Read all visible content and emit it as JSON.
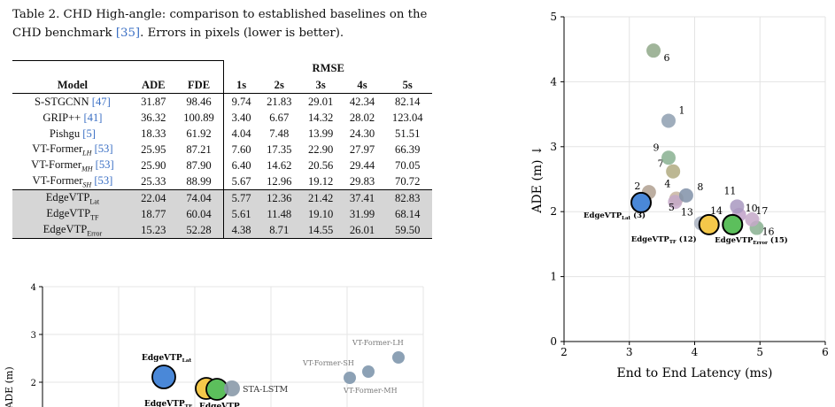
{
  "caption": {
    "label": "Table 2.",
    "text": "CHD High-angle: comparison to established baselines on the CHD benchmark",
    "ref": "[35]",
    "text2": ". Errors in pixels (lower is better)."
  },
  "table": {
    "rmse_header": "RMSE",
    "columns": [
      "Model",
      "ADE",
      "FDE",
      "1s",
      "2s",
      "3s",
      "4s",
      "5s"
    ],
    "rows": [
      {
        "name": "S-STGCNN",
        "sub": "",
        "ref": "[47]",
        "vals": [
          "31.87",
          "98.46",
          "9.74",
          "21.83",
          "29.01",
          "42.34",
          "82.14"
        ]
      },
      {
        "name": "GRIP++",
        "sub": "",
        "ref": "[41]",
        "vals": [
          "36.32",
          "100.89",
          "3.40",
          "6.67",
          "14.32",
          "28.02",
          "123.04"
        ]
      },
      {
        "name": "Pishgu",
        "sub": "",
        "ref": "[5]",
        "vals": [
          "18.33",
          "61.92",
          "4.04",
          "7.48",
          "13.99",
          "24.30",
          "51.51"
        ]
      },
      {
        "name": "VT-Former",
        "sub": "LH",
        "ref": "[53]",
        "vals": [
          "25.95",
          "87.21",
          "7.60",
          "17.35",
          "22.90",
          "27.97",
          "66.39"
        ]
      },
      {
        "name": "VT-Former",
        "sub": "MH",
        "ref": "[53]",
        "vals": [
          "25.90",
          "87.90",
          "6.40",
          "14.62",
          "20.56",
          "29.44",
          "70.05"
        ]
      },
      {
        "name": "VT-Former",
        "sub": "SH",
        "ref": "[53]",
        "vals": [
          "25.33",
          "88.99",
          "5.67",
          "12.96",
          "19.12",
          "29.83",
          "70.72"
        ]
      }
    ],
    "ours": [
      {
        "name": "EdgeVTP",
        "sub": "Lat",
        "vals": [
          "22.04",
          "74.04",
          "5.77",
          "12.36",
          "21.42",
          "37.41",
          "82.83"
        ]
      },
      {
        "name": "EdgeVTP",
        "sub": "TF",
        "vals": [
          "18.77",
          "60.04",
          "5.61",
          "11.48",
          "19.10",
          "31.99",
          "68.14"
        ]
      },
      {
        "name": "EdgeVTP",
        "sub": "Error",
        "vals": [
          "15.23",
          "52.28",
          "4.38",
          "8.71",
          "14.55",
          "26.01",
          "59.50"
        ]
      }
    ]
  },
  "chart_data": [
    {
      "type": "scatter",
      "xlabel": "End to End Latency (ms)",
      "ylabel": "ADE (m) ↓",
      "xlim": [
        2,
        6
      ],
      "ylim": [
        0,
        5
      ],
      "xticks": [
        "2",
        "3",
        "4",
        "5",
        "6"
      ],
      "yticks": [
        "0",
        "1",
        "2",
        "3",
        "4",
        "5"
      ],
      "grid": true,
      "points": [
        {
          "label": "1",
          "x": 3.6,
          "y": 3.4,
          "color": "#8e9fb0"
        },
        {
          "label": "2",
          "x": 3.3,
          "y": 2.3,
          "color": "#b0a090"
        },
        {
          "label": "4",
          "x": 3.72,
          "y": 2.2,
          "color": "#c8b4a0"
        },
        {
          "label": "5",
          "x": 3.7,
          "y": 2.15,
          "color": "#c4a8c8"
        },
        {
          "label": "6",
          "x": 3.37,
          "y": 4.48,
          "color": "#8fa888"
        },
        {
          "label": "7",
          "x": 3.67,
          "y": 2.62,
          "color": "#b0aa80"
        },
        {
          "label": "8",
          "x": 3.87,
          "y": 2.25,
          "color": "#8090a8"
        },
        {
          "label": "9",
          "x": 3.6,
          "y": 2.83,
          "color": "#88b090"
        },
        {
          "label": "10",
          "x": 4.68,
          "y": 1.95,
          "color": "#c0a0c8"
        },
        {
          "label": "11",
          "x": 4.65,
          "y": 2.08,
          "color": "#a898c0"
        },
        {
          "label": "13",
          "x": 4.1,
          "y": 1.82,
          "color": "#a8b0c0"
        },
        {
          "label": "14",
          "x": 4.55,
          "y": 1.85,
          "color": "#a0b4c8"
        },
        {
          "label": "16",
          "x": 4.95,
          "y": 1.75,
          "color": "#88b090"
        },
        {
          "label": "17",
          "x": 4.88,
          "y": 1.88,
          "color": "#c4a8c8"
        },
        {
          "label": "3",
          "x": 3.18,
          "y": 2.14,
          "color": "#4a88d8",
          "big": true,
          "name": "EdgeVTP",
          "sub": "Lat",
          "suffix": " (3)"
        },
        {
          "label": "12",
          "x": 4.22,
          "y": 1.8,
          "color": "#f4c84a",
          "big": true,
          "name": "EdgeVTP",
          "sub": "TF",
          "suffix": " (12)"
        },
        {
          "label": "15",
          "x": 4.58,
          "y": 1.8,
          "color": "#5cbf5c",
          "big": true,
          "name": "EdgeVTP",
          "sub": "Error",
          "suffix": " (15)"
        }
      ]
    },
    {
      "type": "scatter",
      "ylabel": "ADE (m)",
      "ylim": [
        1.5,
        4
      ],
      "yticks": [
        "2",
        "3",
        "4"
      ],
      "grid": true,
      "points": [
        {
          "name": "EdgeVTP",
          "sub": "Lat",
          "color": "#4a88d8",
          "big": true
        },
        {
          "name": "EdgeVTP",
          "sub": "TF",
          "color": "#f4c84a",
          "big": true
        },
        {
          "name": "EdgeVTP",
          "sub": "",
          "color": "#5cbf5c",
          "big": true
        },
        {
          "name": "STA-LSTM",
          "color": "#8a9aaa"
        },
        {
          "name": "VT-Former-SH",
          "color": "#7f97ad"
        },
        {
          "name": "VT-Former-MH",
          "color": "#7f97ad"
        },
        {
          "name": "VT-Former-LH",
          "color": "#7f97ad"
        }
      ]
    }
  ]
}
